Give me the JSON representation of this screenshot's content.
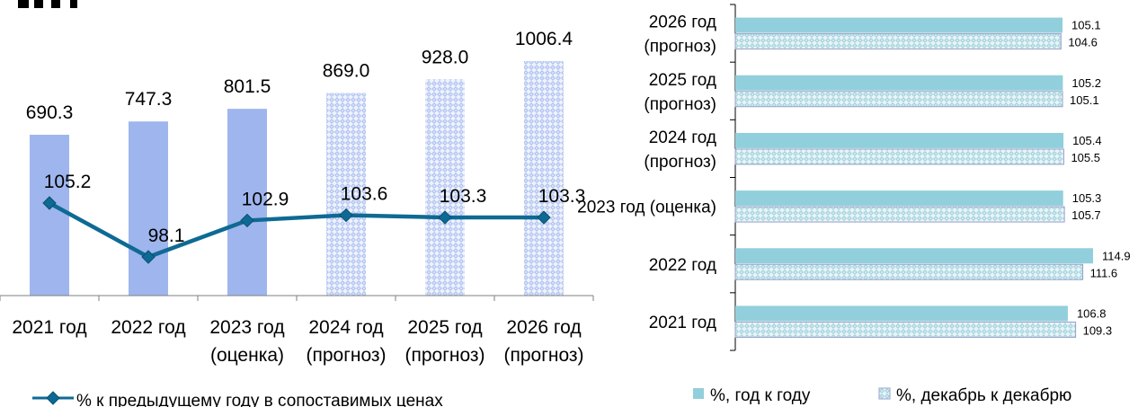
{
  "chart_data": [
    {
      "type": "bar+line",
      "categories": [
        [
          "2021 год"
        ],
        [
          "2022 год"
        ],
        [
          "2023 год",
          "(оценка)"
        ],
        [
          "2024 год",
          "(прогноз)"
        ],
        [
          "2025 год",
          "(прогноз)"
        ],
        [
          "2026 год",
          "(прогноз)"
        ]
      ],
      "bars": {
        "values": [
          690.3,
          747.3,
          801.5,
          869.0,
          928.0,
          1006.4
        ],
        "labels": [
          "690.3",
          "747.3",
          "801.5",
          "869.0",
          "928.0",
          "1006.4"
        ],
        "fill": [
          "solid",
          "solid",
          "solid",
          "pattern",
          "pattern",
          "pattern"
        ],
        "color": "#9fb5ee",
        "pattern_color": "#b7c8f3"
      },
      "line": {
        "name": "% к предыдущему году в сопоставимых ценах",
        "values": [
          105.2,
          98.1,
          102.9,
          103.6,
          103.3,
          103.3
        ],
        "labels": [
          "105.2",
          "98.1",
          "102.9",
          "103.6",
          "103.3",
          "103.3"
        ],
        "color": "#0e6a94"
      },
      "legend": "bottom-left"
    },
    {
      "type": "horizontal-bar",
      "categories": [
        [
          "2026 год",
          "(прогноз)"
        ],
        [
          "2025 год",
          "(прогноз)"
        ],
        [
          "2024 год",
          "(прогноз)"
        ],
        [
          "2023 год (оценка)"
        ],
        [
          "2022 год"
        ],
        [
          "2021 год"
        ]
      ],
      "series": [
        {
          "name": "%, год к году",
          "values": [
            105.1,
            105.2,
            105.4,
            105.3,
            114.9,
            106.8
          ],
          "labels": [
            "105.1",
            "105.2",
            "105.4",
            "105.3",
            "114.9",
            "106.8"
          ],
          "color": "#92cfdc"
        },
        {
          "name": "%, декабрь к декабрю",
          "values": [
            104.6,
            105.1,
            105.5,
            105.7,
            111.6,
            109.3
          ],
          "labels": [
            "104.6",
            "105.1",
            "105.5",
            "105.7",
            "111.6",
            "109.3"
          ],
          "color": "#a9d4e0"
        }
      ],
      "legend": "bottom"
    }
  ]
}
